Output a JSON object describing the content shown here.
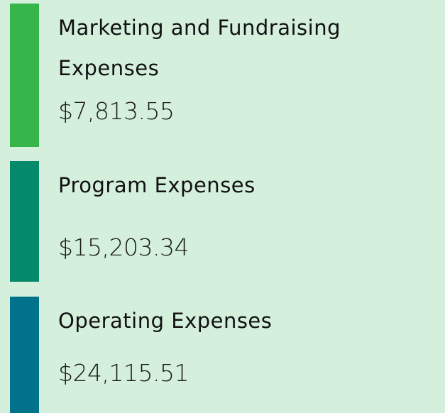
{
  "items": [
    {
      "label": "Marketing and Fundraising Expenses",
      "amount": "$7,813.55",
      "color": "#35b54a"
    },
    {
      "label": "Program Expenses",
      "amount": "$15,203.34",
      "color": "#04896a"
    },
    {
      "label": "Operating Expenses",
      "amount": "$24,115.51",
      "color": "#00728b"
    }
  ]
}
